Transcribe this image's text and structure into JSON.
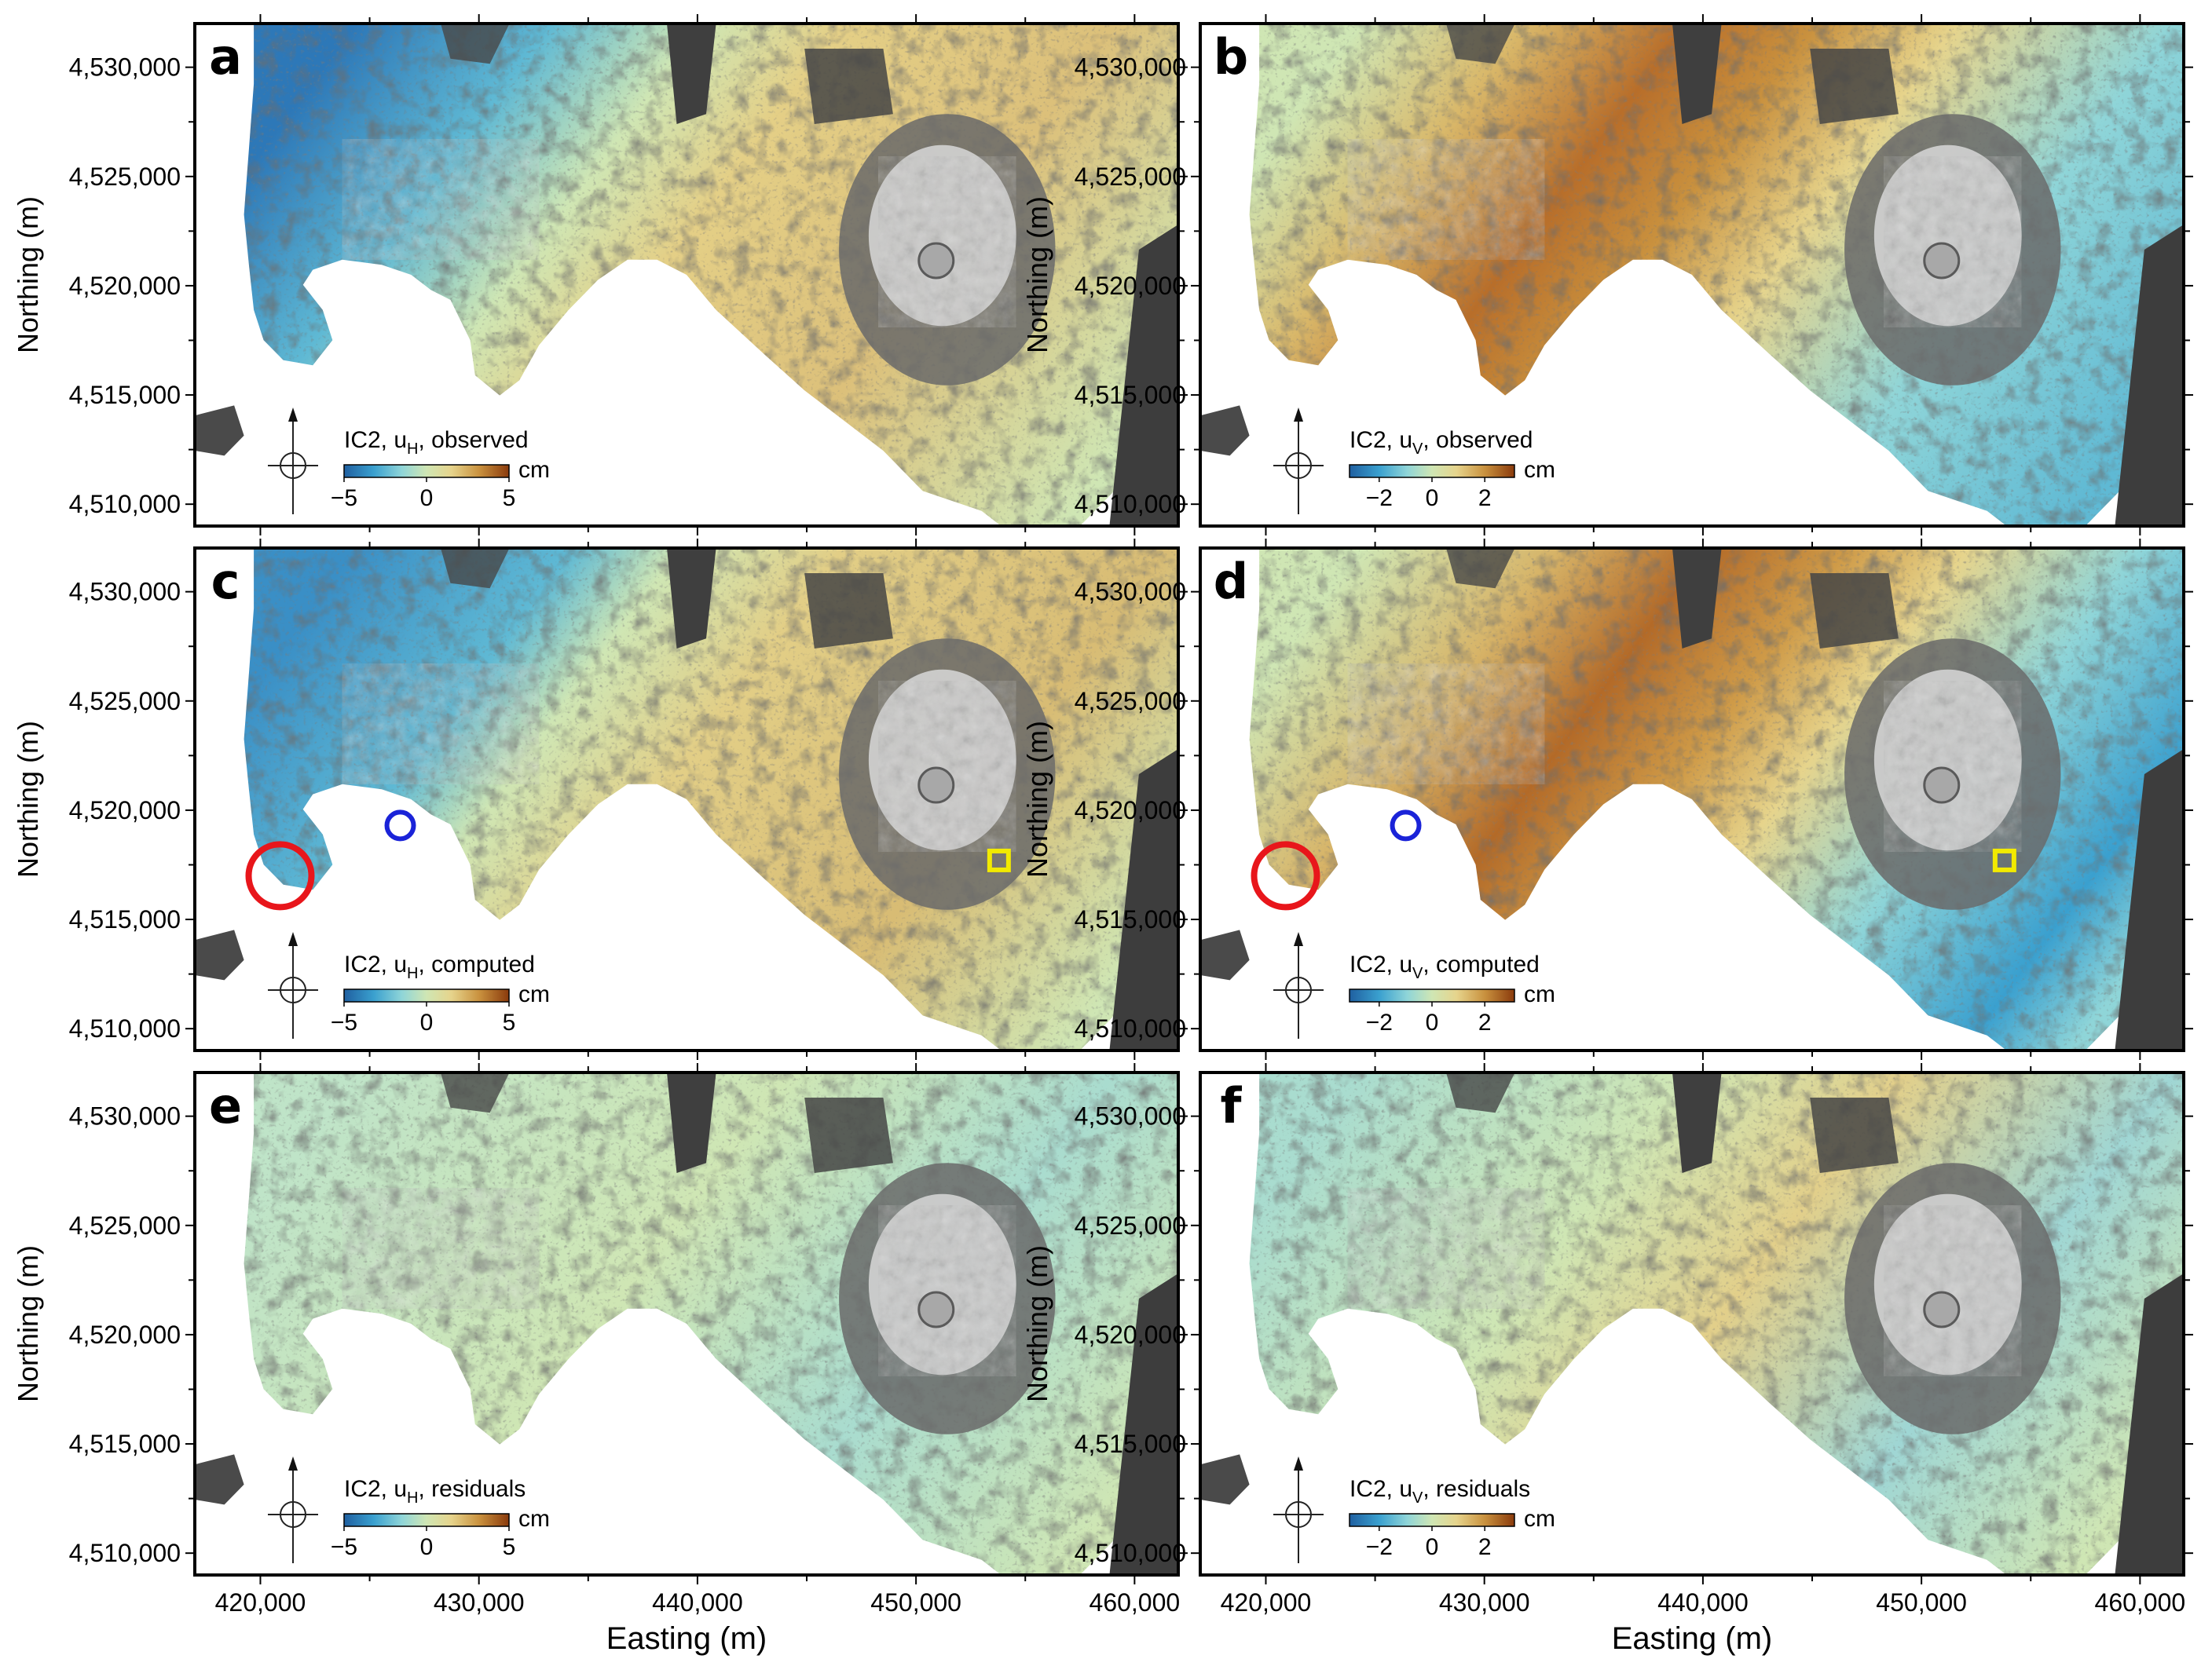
{
  "axes": {
    "ylabel": "Northing (m)",
    "xlabel": "Easting (m)",
    "y_ticks": [
      "4,530,000",
      "4,525,000",
      "4,520,000",
      "4,515,000",
      "4,510,000"
    ],
    "x_ticks": [
      "420,000",
      "430,000",
      "440,000",
      "450,000",
      "460,000"
    ],
    "x_range": [
      417000,
      462000
    ],
    "y_range": [
      4509000,
      4532000
    ]
  },
  "colormap": [
    "#1f5fa0",
    "#3aa0cf",
    "#8fd5d8",
    "#cfe6b4",
    "#e6d48c",
    "#c9913e",
    "#8a3a0c"
  ],
  "panels": [
    {
      "letter": "a",
      "row": 0,
      "col": 0,
      "title_prefix": "IC2, u",
      "sub": "H",
      "title_suffix": ", observed",
      "scale": {
        "unit": "cm",
        "ticks": [
          "−5",
          "0",
          "5"
        ]
      },
      "field": "h_obs",
      "markers": false
    },
    {
      "letter": "b",
      "row": 0,
      "col": 1,
      "title_prefix": "IC2, u",
      "sub": "V",
      "title_suffix": ", observed",
      "scale": {
        "unit": "cm",
        "ticks": [
          "−2",
          "0",
          "2"
        ]
      },
      "field": "v_obs",
      "markers": false
    },
    {
      "letter": "c",
      "row": 1,
      "col": 0,
      "title_prefix": "IC2, u",
      "sub": "H",
      "title_suffix": ", computed",
      "scale": {
        "unit": "cm",
        "ticks": [
          "−5",
          "0",
          "5"
        ]
      },
      "field": "h_comp",
      "markers": true
    },
    {
      "letter": "d",
      "row": 1,
      "col": 1,
      "title_prefix": "IC2, u",
      "sub": "V",
      "title_suffix": ", computed",
      "scale": {
        "unit": "cm",
        "ticks": [
          "−2",
          "0",
          "2"
        ]
      },
      "field": "v_comp",
      "markers": true
    },
    {
      "letter": "e",
      "row": 2,
      "col": 0,
      "title_prefix": "IC2, u",
      "sub": "H",
      "title_suffix": ", residuals",
      "scale": {
        "unit": "cm",
        "ticks": [
          "−5",
          "0",
          "5"
        ]
      },
      "field": "h_res",
      "markers": false
    },
    {
      "letter": "f",
      "row": 2,
      "col": 1,
      "title_prefix": "IC2, u",
      "sub": "V",
      "title_suffix": ", residuals",
      "scale": {
        "unit": "cm",
        "ticks": [
          "−2",
          "0",
          "2"
        ]
      },
      "field": "v_res",
      "markers": false
    }
  ],
  "markers": {
    "red_circle": {
      "color": "#e8161b",
      "easting": 420900,
      "northing": 4517000
    },
    "blue_circle": {
      "color": "#1a23d8",
      "easting": 426400,
      "northing": 4519300
    },
    "yellow_square": {
      "color": "#f2ea00",
      "easting": 453800,
      "northing": 4517700
    }
  }
}
